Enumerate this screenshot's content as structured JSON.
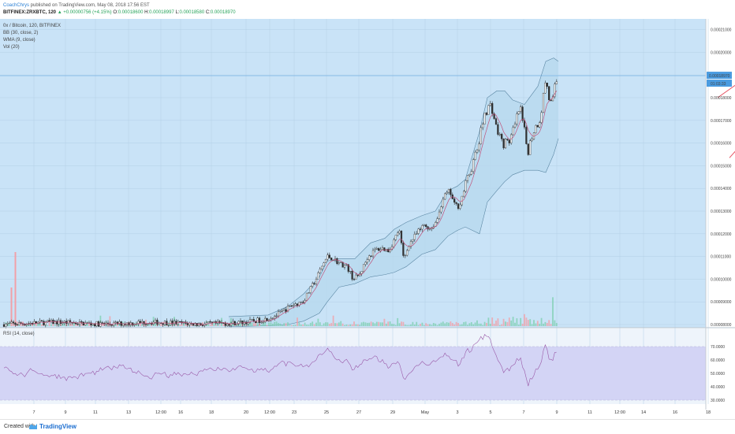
{
  "header": {
    "author": "CoachChrys",
    "published_text": " published on TradingView.com, May 08, 2018 17:56 EST",
    "symbol": "BITFINEX:ZRXBTC, 120",
    "change": "▲ +0.00000756 (+4.15%)",
    "o_label": "O:",
    "o_value": "0.00018600",
    "h_label": "H:",
    "h_value": "0.00018997",
    "l_label": "L:",
    "l_value": "0.00018580",
    "c_label": "C:",
    "c_value": "0.00018970"
  },
  "legend": {
    "line1": "0x / Bitcoin, 120, BITFINEX",
    "line2": "BB (30, close, 2)",
    "line3": "WMA (9, close)",
    "line4": "Vol (20)"
  },
  "rsi_legend": "RSI (14, close)",
  "price_label": "0.00018970",
  "countdown_label": "01:03:33",
  "footer": {
    "created": "Created with",
    "brand": "TradingView"
  },
  "colors": {
    "pane_bg": "#c9e3f7",
    "rsi_band": "#d3d4f5",
    "candle": "#2e2e2e",
    "bb_fill": "#b8d8ee",
    "bb_line": "#5a86a3",
    "wma": "#c0527a",
    "rsi_line": "#9a5aa8",
    "trendline": "#e54a5a",
    "vol_up": "#7fcfb2",
    "vol_down": "#f1a0a8",
    "price_tag": "#4a9be0"
  },
  "chart_data": {
    "type": "candlestick",
    "symbol": "ZRXBTC",
    "timeframe": "120",
    "x_labels": [
      "7",
      "9",
      "11",
      "13",
      "12:00",
      "16",
      "18",
      "20",
      "12:00",
      "23",
      "25",
      "27",
      "29",
      "May",
      "3",
      "5",
      "7",
      "9",
      "11",
      "12:00",
      "14",
      "16",
      "18"
    ],
    "y_ticks": [
      "0.00021000",
      "0.00020000",
      "0.00019000",
      "0.00018000",
      "0.00017000",
      "0.00016000",
      "0.00015000",
      "0.00014000",
      "0.00013000",
      "0.00012000",
      "0.00011000",
      "0.00010000",
      "0.00009000",
      "0.00008000"
    ],
    "price_path": [
      [
        0,
        8.05e-05
      ],
      [
        25,
        8.12e-05
      ],
      [
        45,
        8.22e-05
      ],
      [
        60,
        8.4e-05
      ],
      [
        70,
        8.6e-05
      ],
      [
        80,
        8.85e-05
      ],
      [
        85,
        8.9e-05
      ],
      [
        95,
        9.05e-05
      ],
      [
        110,
        9.95e-05
      ],
      [
        118,
        0.0001055
      ],
      [
        125,
        0.00011
      ],
      [
        133,
        0.000109
      ],
      [
        140,
        0.000107
      ],
      [
        150,
        0.0001055
      ],
      [
        158,
        0.0001
      ],
      [
        166,
        0.000102
      ],
      [
        176,
        0.0001095
      ],
      [
        186,
        0.000113
      ],
      [
        195,
        0.0001135
      ],
      [
        203,
        0.0001125
      ],
      [
        210,
        0.0001175
      ],
      [
        216,
        0.000122
      ],
      [
        222,
        0.0001085
      ],
      [
        228,
        0.000115
      ],
      [
        238,
        0.00012
      ],
      [
        248,
        0.000124
      ],
      [
        256,
        0.000122
      ],
      [
        264,
        0.000126
      ],
      [
        272,
        0.000136
      ],
      [
        280,
        0.000139
      ],
      [
        286,
        0.000133
      ],
      [
        292,
        0.000132
      ],
      [
        300,
        0.000141
      ],
      [
        316,
        0.000158
      ],
      [
        325,
        0.000174
      ],
      [
        333,
        0.000177
      ],
      [
        339,
        0.000167
      ],
      [
        347,
        0.00016
      ],
      [
        354,
        0.00016
      ],
      [
        362,
        0.000166
      ],
      [
        369,
        0.000176
      ],
      [
        376,
        0.000163
      ],
      [
        379,
        0.000156
      ],
      [
        386,
        0.000165
      ],
      [
        395,
        0.000171
      ],
      [
        402,
        0.0001885
      ],
      [
        406,
        0.00018
      ],
      [
        410,
        0.000176
      ],
      [
        413,
        0.000184
      ],
      [
        418,
        0.0001897
      ]
    ],
    "bb_upper": [
      [
        0,
        8.35e-05
      ],
      [
        50,
        8.42e-05
      ],
      [
        75,
        8.8e-05
      ],
      [
        95,
        9.35e-05
      ],
      [
        115,
        0.000101
      ],
      [
        125,
        0.000108
      ],
      [
        140,
        0.000109
      ],
      [
        160,
        0.000109
      ],
      [
        180,
        0.000116
      ],
      [
        198,
        0.000118
      ],
      [
        210,
        0.000122
      ],
      [
        225,
        0.000125
      ],
      [
        245,
        0.000128
      ],
      [
        262,
        0.00013
      ],
      [
        278,
        0.000139
      ],
      [
        290,
        0.000141
      ],
      [
        300,
        0.000144
      ],
      [
        318,
        0.000165
      ],
      [
        328,
        0.00018
      ],
      [
        340,
        0.000183
      ],
      [
        350,
        0.000183
      ],
      [
        360,
        0.000179
      ],
      [
        375,
        0.000177
      ],
      [
        392,
        0.000185
      ],
      [
        402,
        0.000196
      ],
      [
        412,
        0.0001975
      ],
      [
        418,
        0.000196
      ]
    ],
    "bb_lower": [
      [
        0,
        7.9e-05
      ],
      [
        50,
        7.95e-05
      ],
      [
        75,
        8e-05
      ],
      [
        95,
        8.15e-05
      ],
      [
        115,
        8.5e-05
      ],
      [
        125,
        9e-05
      ],
      [
        140,
        9.65e-05
      ],
      [
        160,
        9.8e-05
      ],
      [
        180,
        0.000101
      ],
      [
        198,
        0.000102
      ],
      [
        210,
        0.000103
      ],
      [
        225,
        0.0001055
      ],
      [
        245,
        0.000111
      ],
      [
        262,
        0.000113
      ],
      [
        278,
        0.000119
      ],
      [
        290,
        0.0001215
      ],
      [
        300,
        0.000123
      ],
      [
        318,
        0.00012
      ],
      [
        328,
        0.000134
      ],
      [
        340,
        0.000139
      ],
      [
        350,
        0.000143
      ],
      [
        360,
        0.000146
      ],
      [
        375,
        0.000148
      ],
      [
        392,
        0.000148
      ],
      [
        402,
        0.000147
      ],
      [
        412,
        0.000155
      ],
      [
        418,
        0.000162
      ]
    ],
    "trendlines": [
      {
        "from": [
          365,
          0.00018
        ],
        "to": [
          445,
          0.000212
        ]
      },
      {
        "from": [
          380,
          0.0001535
        ],
        "to": [
          445,
          0.0001985
        ]
      }
    ],
    "rsi": {
      "overbought": 70,
      "oversold": 30,
      "y_ticks": [
        "70.0000",
        "60.0000",
        "50.0000",
        "40.0000",
        "30.0000"
      ]
    },
    "horizontal_line": 0.0001897,
    "grid": true
  }
}
